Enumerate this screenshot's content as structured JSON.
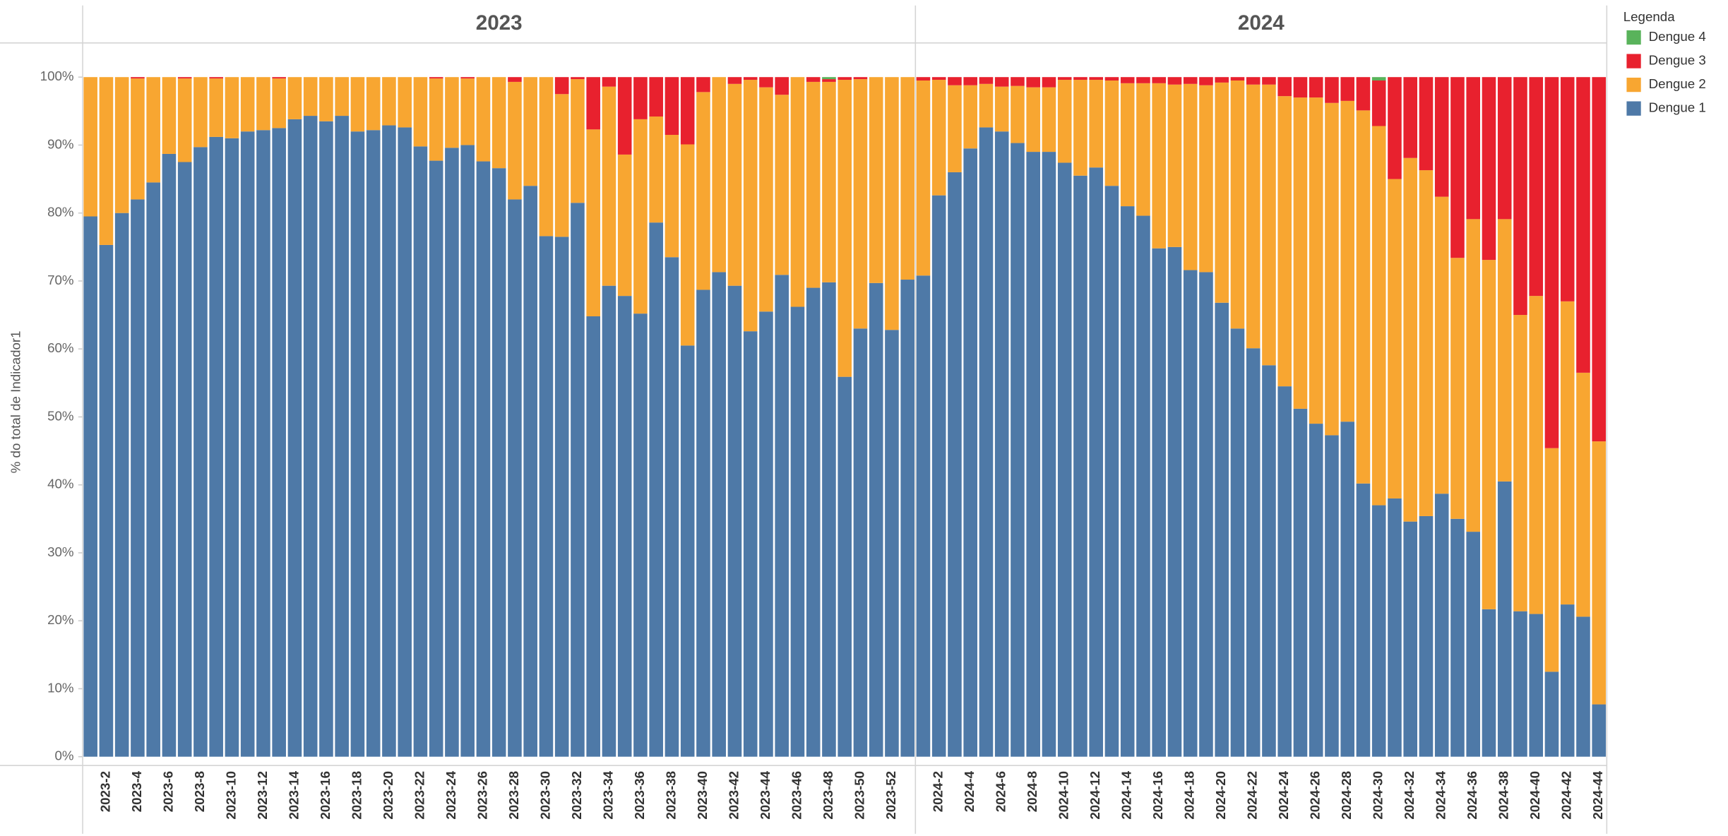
{
  "chart_data": {
    "type": "stacked-bar-100",
    "y_label": "% do total de Indicador1",
    "legend_title": "Legenda",
    "ylim": [
      0,
      100
    ],
    "yticks": [
      {
        "value": 0,
        "label": "0%"
      },
      {
        "value": 10,
        "label": "10%"
      },
      {
        "value": 20,
        "label": "20%"
      },
      {
        "value": 30,
        "label": "30%"
      },
      {
        "value": 40,
        "label": "40%"
      },
      {
        "value": 50,
        "label": "50%"
      },
      {
        "value": 60,
        "label": "60%"
      },
      {
        "value": 70,
        "label": "70%"
      },
      {
        "value": 80,
        "label": "80%"
      },
      {
        "value": 90,
        "label": "90%"
      },
      {
        "value": 100,
        "label": "100%"
      }
    ],
    "series": [
      {
        "name": "Dengue 4",
        "color": "#59b35b"
      },
      {
        "name": "Dengue 3",
        "color": "#e8212e"
      },
      {
        "name": "Dengue 2",
        "color": "#f8a631"
      },
      {
        "name": "Dengue 1",
        "color": "#4e79a7"
      }
    ],
    "facets": [
      {
        "title": "2023",
        "categories": [
          null,
          "2023-2",
          null,
          "2023-4",
          null,
          "2023-6",
          null,
          "2023-8",
          null,
          "2023-10",
          null,
          "2023-12",
          null,
          "2023-14",
          null,
          "2023-16",
          null,
          "2023-18",
          null,
          "2023-20",
          null,
          "2023-22",
          null,
          "2023-24",
          null,
          "2023-26",
          null,
          "2023-28",
          null,
          "2023-30",
          null,
          "2023-32",
          null,
          "2023-34",
          null,
          "2023-36",
          null,
          "2023-38",
          null,
          "2023-40",
          null,
          "2023-42",
          null,
          "2023-44",
          null,
          "2023-46",
          null,
          "2023-48",
          null,
          "2023-50",
          null,
          "2023-52",
          null
        ],
        "series": [
          {
            "values": [
              0,
              0,
              0,
              0,
              0,
              0,
              0,
              0,
              0,
              0,
              0,
              0,
              0,
              0,
              0,
              0,
              0,
              0,
              0,
              0,
              0,
              0,
              0,
              0,
              0,
              0,
              0,
              0,
              0,
              0,
              0,
              0,
              0,
              0,
              0,
              0,
              0,
              0,
              0,
              0,
              0,
              0,
              0,
              0,
              0,
              0,
              0,
              0.3,
              0,
              0,
              0,
              0,
              0
            ]
          },
          {
            "values": [
              0,
              0,
              0,
              0.2,
              0,
              0,
              0.2,
              0,
              0.2,
              0,
              0,
              0,
              0.2,
              0,
              0,
              0,
              0,
              0,
              0,
              0,
              0,
              0,
              0.2,
              0,
              0.2,
              0,
              0,
              0.7,
              0,
              0,
              2.5,
              0.3,
              7.7,
              1.4,
              11.4,
              6.2,
              5.8,
              8.5,
              9.9,
              2.2,
              0,
              1,
              0.4,
              1.5,
              2.6,
              0,
              0.7,
              0.4,
              0.4,
              0.3,
              0,
              0,
              0
            ]
          },
          {
            "values": [
              20.5,
              24.7,
              20,
              17.8,
              15.5,
              11.3,
              12.3,
              10.3,
              8.6,
              9,
              8,
              7.8,
              7.3,
              6.2,
              5.7,
              6.5,
              5.7,
              8,
              7.8,
              7.1,
              7.4,
              10.2,
              12.1,
              10.4,
              9.8,
              12.4,
              13.4,
              17.3,
              16,
              23.4,
              21,
              18.2,
              27.5,
              29.3,
              20.8,
              28.6,
              15.6,
              18,
              29.6,
              29.1,
              28.7,
              29.7,
              37,
              33,
              26.5,
              33.8,
              30.3,
              29.5,
              43.7,
              36.7,
              30.3,
              37.2,
              29.8
            ]
          },
          {
            "values": [
              79.5,
              75.3,
              80,
              82,
              84.5,
              88.7,
              87.5,
              89.7,
              91.2,
              91,
              92,
              92.2,
              92.5,
              93.8,
              94.3,
              93.5,
              94.3,
              92,
              92.2,
              92.9,
              92.6,
              89.8,
              87.7,
              89.6,
              90,
              87.6,
              86.6,
              82,
              84,
              76.6,
              76.5,
              81.5,
              64.8,
              69.3,
              67.8,
              65.2,
              78.6,
              73.5,
              60.5,
              68.7,
              71.3,
              69.3,
              62.6,
              65.5,
              70.9,
              66.2,
              69,
              69.8,
              55.9,
              63,
              69.7,
              62.8,
              70.2
            ]
          }
        ]
      },
      {
        "title": "2024",
        "categories": [
          null,
          "2024-2",
          null,
          "2024-4",
          null,
          "2024-6",
          null,
          "2024-8",
          null,
          "2024-10",
          null,
          "2024-12",
          null,
          "2024-14",
          null,
          "2024-16",
          null,
          "2024-18",
          null,
          "2024-20",
          null,
          "2024-22",
          null,
          "2024-24",
          null,
          "2024-26",
          null,
          "2024-28",
          null,
          "2024-30",
          null,
          "2024-32",
          null,
          "2024-34",
          null,
          "2024-36",
          null,
          "2024-38",
          null,
          "2024-40",
          null,
          "2024-42",
          null,
          "2024-44"
        ],
        "series": [
          {
            "values": [
              0,
              0,
              0,
              0,
              0,
              0,
              0,
              0,
              0,
              0,
              0,
              0,
              0,
              0,
              0,
              0,
              0,
              0,
              0,
              0,
              0,
              0,
              0,
              0,
              0,
              0,
              0,
              0,
              0,
              0.5,
              0,
              0,
              0,
              0,
              0,
              0,
              0,
              0,
              0,
              0,
              0,
              0,
              0,
              0
            ]
          },
          {
            "values": [
              0.5,
              0.4,
              1.2,
              1.2,
              1,
              1.4,
              1.3,
              1.5,
              1.5,
              0.4,
              0.4,
              0.4,
              0.5,
              0.9,
              0.9,
              0.9,
              1.1,
              1,
              1.2,
              0.8,
              0.5,
              1.1,
              1.1,
              2.8,
              3,
              3,
              3.8,
              3.5,
              4.9,
              6.7,
              15,
              11.9,
              13.7,
              17.6,
              26.6,
              20.9,
              26.9,
              20.9,
              35,
              32.2,
              54.6,
              33,
              43.5,
              53.6
            ]
          },
          {
            "values": [
              28.7,
              17,
              12.8,
              9.3,
              6.4,
              6.6,
              8.4,
              9.5,
              9.5,
              12.2,
              14.1,
              12.9,
              15.5,
              18.1,
              19.5,
              24.3,
              23.9,
              27.4,
              27.5,
              32.4,
              36.5,
              38.8,
              41.3,
              42.7,
              45.8,
              48,
              48.9,
              47.2,
              54.9,
              55.8,
              47,
              53.5,
              50.9,
              43.7,
              38.4,
              46,
              51.4,
              38.6,
              43.6,
              46.8,
              32.9,
              44.6,
              35.9,
              38.7
            ]
          },
          {
            "values": [
              70.8,
              82.6,
              86,
              89.5,
              92.6,
              92,
              90.3,
              89,
              89,
              87.4,
              85.5,
              86.7,
              84,
              81,
              79.6,
              74.8,
              75,
              71.6,
              71.3,
              66.8,
              63,
              60.1,
              57.6,
              54.5,
              51.2,
              49,
              47.3,
              49.3,
              40.2,
              37,
              38,
              34.6,
              35.4,
              38.7,
              35,
              33.1,
              21.7,
              40.5,
              21.4,
              21,
              12.5,
              22.4,
              20.6,
              7.7
            ]
          }
        ]
      }
    ]
  }
}
